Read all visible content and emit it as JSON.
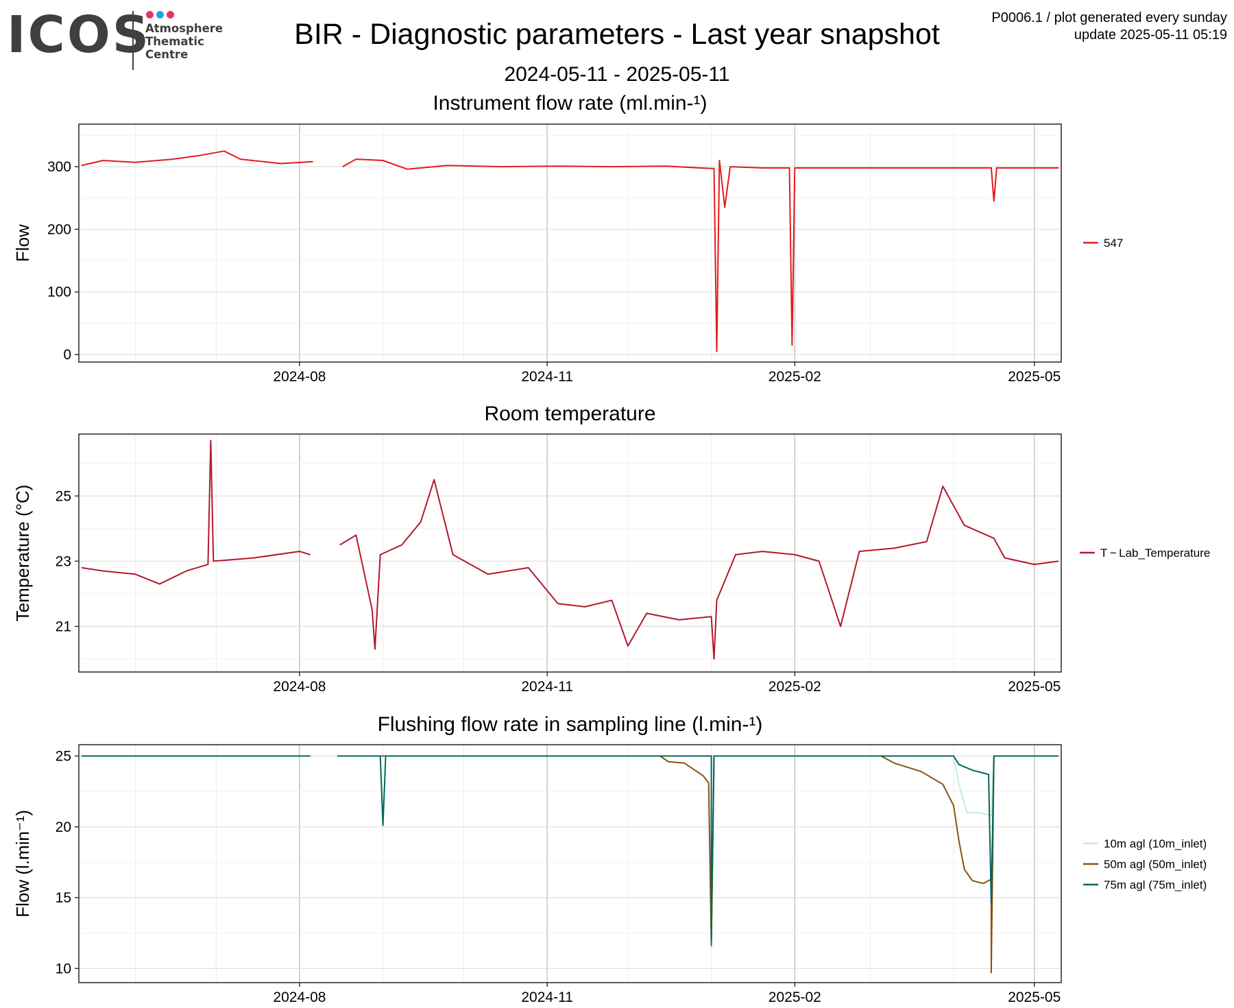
{
  "logo": {
    "wordmark": "ICOS",
    "lines": [
      "Atmosphere",
      "Thematic",
      "Centre"
    ],
    "dot_colors": [
      "#e8336e",
      "#1ea4e4",
      "#e8336e"
    ]
  },
  "header": {
    "title": "BIR - Diagnostic parameters - Last year snapshot",
    "period": "2024-05-11 - 2025-05-11",
    "meta_line1": "P0006.1 / plot generated every sunday",
    "meta_line2": "update  2025-05-11 05:19"
  },
  "chart_data": [
    {
      "type": "line",
      "title": "Instrument flow rate (ml.min-¹)",
      "ylabel": "Flow",
      "xlim": [
        "2024-05-11",
        "2025-05-11"
      ],
      "xticks": [
        "2024-08",
        "2024-11",
        "2025-02",
        "2025-05"
      ],
      "ylim": [
        -12,
        368
      ],
      "yticks": [
        0,
        100,
        200,
        300
      ],
      "grid": true,
      "legend": "right",
      "series": [
        {
          "name": "547",
          "color": "#e41a1c",
          "points": [
            [
              "2024-05-12",
              302
            ],
            [
              "2024-05-20",
              310
            ],
            [
              "2024-06-01",
              307
            ],
            [
              "2024-06-15",
              312
            ],
            [
              "2024-06-25",
              318
            ],
            [
              "2024-07-04",
              325
            ],
            [
              "2024-07-10",
              312
            ],
            [
              "2024-07-25",
              305
            ],
            [
              "2024-08-06",
              308
            ],
            [
              "2024-08-14",
              null
            ],
            [
              "2024-08-17",
              300
            ],
            [
              "2024-08-22",
              312
            ],
            [
              "2024-09-01",
              310
            ],
            [
              "2024-09-10",
              296
            ],
            [
              "2024-09-25",
              302
            ],
            [
              "2024-10-15",
              300
            ],
            [
              "2024-11-05",
              301
            ],
            [
              "2024-11-25",
              300
            ],
            [
              "2024-12-15",
              301
            ],
            [
              "2025-01-01",
              297
            ],
            [
              "2025-01-02",
              297
            ],
            [
              "2025-01-03",
              5
            ],
            [
              "2025-01-04",
              310
            ],
            [
              "2025-01-06",
              235
            ],
            [
              "2025-01-08",
              300
            ],
            [
              "2025-01-20",
              298
            ],
            [
              "2025-01-30",
              298
            ],
            [
              "2025-01-31",
              15
            ],
            [
              "2025-02-01",
              298
            ],
            [
              "2025-03-01",
              298
            ],
            [
              "2025-04-01",
              298
            ],
            [
              "2025-04-15",
              298
            ],
            [
              "2025-04-16",
              245
            ],
            [
              "2025-04-17",
              298
            ],
            [
              "2025-05-10",
              298
            ]
          ]
        }
      ]
    },
    {
      "type": "line",
      "title": "Room temperature",
      "ylabel": "Temperature (°C)",
      "xlim": [
        "2024-05-11",
        "2025-05-11"
      ],
      "xticks": [
        "2024-08",
        "2024-11",
        "2025-02",
        "2025-05"
      ],
      "ylim": [
        19.6,
        26.9
      ],
      "yticks": [
        21,
        23,
        25
      ],
      "grid": true,
      "legend": "right",
      "series": [
        {
          "name": "T − Lab_Temperature",
          "color": "#b2182b",
          "points": [
            [
              "2024-05-12",
              22.8
            ],
            [
              "2024-05-20",
              22.7
            ],
            [
              "2024-06-01",
              22.6
            ],
            [
              "2024-06-10",
              22.3
            ],
            [
              "2024-06-20",
              22.7
            ],
            [
              "2024-06-28",
              22.9
            ],
            [
              "2024-06-29",
              26.7
            ],
            [
              "2024-06-30",
              23.0
            ],
            [
              "2024-07-15",
              23.1
            ],
            [
              "2024-08-01",
              23.3
            ],
            [
              "2024-08-05",
              23.2
            ],
            [
              "2024-08-06",
              null
            ],
            [
              "2024-08-16",
              23.5
            ],
            [
              "2024-08-22",
              23.8
            ],
            [
              "2024-08-28",
              21.5
            ],
            [
              "2024-08-29",
              20.3
            ],
            [
              "2024-08-31",
              23.2
            ],
            [
              "2024-09-08",
              23.5
            ],
            [
              "2024-09-15",
              24.2
            ],
            [
              "2024-09-20",
              25.5
            ],
            [
              "2024-09-27",
              23.2
            ],
            [
              "2024-10-10",
              22.6
            ],
            [
              "2024-10-25",
              22.8
            ],
            [
              "2024-11-05",
              21.7
            ],
            [
              "2024-11-15",
              21.6
            ],
            [
              "2024-11-25",
              21.8
            ],
            [
              "2024-12-01",
              20.4
            ],
            [
              "2024-12-08",
              21.4
            ],
            [
              "2024-12-20",
              21.2
            ],
            [
              "2025-01-01",
              21.3
            ],
            [
              "2025-01-02",
              20.0
            ],
            [
              "2025-01-03",
              21.8
            ],
            [
              "2025-01-10",
              23.2
            ],
            [
              "2025-01-20",
              23.3
            ],
            [
              "2025-02-01",
              23.2
            ],
            [
              "2025-02-10",
              23.0
            ],
            [
              "2025-02-18",
              21.0
            ],
            [
              "2025-02-25",
              23.3
            ],
            [
              "2025-03-10",
              23.4
            ],
            [
              "2025-03-22",
              23.6
            ],
            [
              "2025-03-28",
              25.3
            ],
            [
              "2025-04-05",
              24.1
            ],
            [
              "2025-04-16",
              23.7
            ],
            [
              "2025-04-20",
              23.1
            ],
            [
              "2025-05-01",
              22.9
            ],
            [
              "2025-05-10",
              23.0
            ]
          ]
        }
      ]
    },
    {
      "type": "line",
      "title": "Flushing flow rate in sampling line (l.min-¹)",
      "ylabel": "Flow (l.min⁻¹)",
      "xlim": [
        "2024-05-11",
        "2025-05-11"
      ],
      "xticks": [
        "2024-08",
        "2024-11",
        "2025-02",
        "2025-05"
      ],
      "ylim": [
        9.0,
        25.8
      ],
      "yticks": [
        10,
        15,
        20,
        25
      ],
      "grid": true,
      "legend": "right",
      "series": [
        {
          "name": "10m agl (10m_inlet)",
          "color": "#c7eae5",
          "points": [
            [
              "2024-05-12",
              25
            ],
            [
              "2024-08-05",
              25
            ],
            [
              "2024-08-06",
              null
            ],
            [
              "2024-08-15",
              25
            ],
            [
              "2025-04-01",
              25
            ],
            [
              "2025-04-03",
              23.0
            ],
            [
              "2025-04-06",
              21.0
            ],
            [
              "2025-04-10",
              21.0
            ],
            [
              "2025-04-15",
              20.8
            ],
            [
              "2025-04-16",
              25
            ],
            [
              "2025-05-10",
              25
            ]
          ]
        },
        {
          "name": "50m agl (50m_inlet)",
          "color": "#8c510a",
          "points": [
            [
              "2024-05-12",
              25
            ],
            [
              "2024-08-05",
              25
            ],
            [
              "2024-08-06",
              null
            ],
            [
              "2024-08-15",
              25
            ],
            [
              "2024-12-13",
              25
            ],
            [
              "2024-12-16",
              24.6
            ],
            [
              "2024-12-22",
              24.5
            ],
            [
              "2024-12-29",
              23.6
            ],
            [
              "2024-12-31",
              23.1
            ],
            [
              "2025-01-01",
              11.6
            ],
            [
              "2025-01-02",
              25
            ],
            [
              "2025-03-05",
              25
            ],
            [
              "2025-03-10",
              24.5
            ],
            [
              "2025-03-20",
              23.9
            ],
            [
              "2025-03-28",
              23.0
            ],
            [
              "2025-04-01",
              21.5
            ],
            [
              "2025-04-03",
              19.0
            ],
            [
              "2025-04-05",
              17.0
            ],
            [
              "2025-04-08",
              16.2
            ],
            [
              "2025-04-12",
              16.0
            ],
            [
              "2025-04-15",
              16.3
            ],
            [
              "2025-04-15",
              9.7
            ],
            [
              "2025-04-16",
              25
            ],
            [
              "2025-05-10",
              25
            ]
          ]
        },
        {
          "name": "75m agl (75m_inlet)",
          "color": "#01665e",
          "points": [
            [
              "2024-05-12",
              25
            ],
            [
              "2024-08-05",
              25
            ],
            [
              "2024-08-06",
              null
            ],
            [
              "2024-08-15",
              25
            ],
            [
              "2024-08-31",
              25
            ],
            [
              "2024-09-01",
              20.1
            ],
            [
              "2024-09-02",
              25
            ],
            [
              "2025-01-01",
              25
            ],
            [
              "2025-01-01",
              12.0
            ],
            [
              "2025-01-02",
              25
            ],
            [
              "2025-04-01",
              25
            ],
            [
              "2025-04-03",
              24.4
            ],
            [
              "2025-04-08",
              24.0
            ],
            [
              "2025-04-14",
              23.7
            ],
            [
              "2025-04-15",
              14.6
            ],
            [
              "2025-04-16",
              25
            ],
            [
              "2025-05-10",
              25
            ]
          ]
        }
      ]
    }
  ]
}
